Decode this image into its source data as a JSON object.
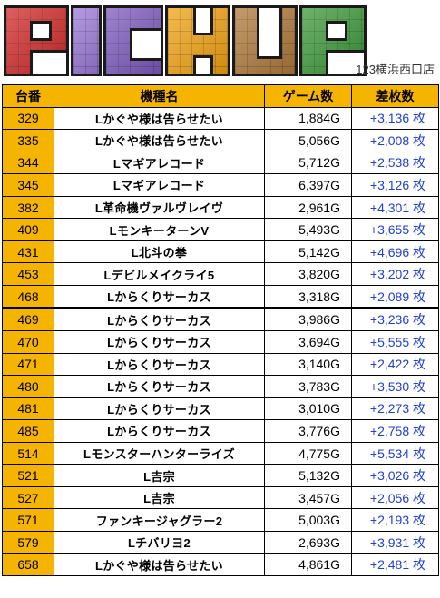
{
  "banner": {
    "logo_text": "PICKUP",
    "store_name": "123横浜西口店"
  },
  "colors": {
    "header_bg": "#f5b400",
    "number_bg": "#f5b400",
    "diff_text": "#1f3fd6"
  },
  "table": {
    "headers": [
      "台番",
      "機種名",
      "ゲーム数",
      "差枚数"
    ],
    "rows": [
      {
        "number": "329",
        "machine": "Lかぐや様は告らせたい",
        "games": "1,884G",
        "diff": "+3,136 枚"
      },
      {
        "number": "335",
        "machine": "Lかぐや様は告らせたい",
        "games": "5,056G",
        "diff": "+2,008 枚"
      },
      {
        "number": "344",
        "machine": "Lマギアレコード",
        "games": "5,712G",
        "diff": "+2,538 枚"
      },
      {
        "number": "345",
        "machine": "Lマギアレコード",
        "games": "6,397G",
        "diff": "+3,126 枚"
      },
      {
        "number": "382",
        "machine": "L革命機ヴァルヴレイヴ",
        "games": "2,961G",
        "diff": "+4,301 枚"
      },
      {
        "number": "409",
        "machine": "LモンキーターンV",
        "games": "5,493G",
        "diff": "+3,655 枚"
      },
      {
        "number": "431",
        "machine": "L北斗の拳",
        "games": "5,142G",
        "diff": "+4,696 枚"
      },
      {
        "number": "453",
        "machine": "Lデビルメイクライ5",
        "games": "3,820G",
        "diff": "+3,202 枚"
      },
      {
        "number": "468",
        "machine": "Lからくりサーカス",
        "games": "3,318G",
        "diff": "+2,089 枚"
      },
      {
        "number": "469",
        "machine": "Lからくりサーカス",
        "games": "3,986G",
        "diff": "+3,236 枚"
      },
      {
        "number": "470",
        "machine": "Lからくりサーカス",
        "games": "3,694G",
        "diff": "+5,555 枚"
      },
      {
        "number": "471",
        "machine": "Lからくりサーカス",
        "games": "3,140G",
        "diff": "+2,422 枚"
      },
      {
        "number": "480",
        "machine": "Lからくりサーカス",
        "games": "3,783G",
        "diff": "+3,530 枚"
      },
      {
        "number": "481",
        "machine": "Lからくりサーカス",
        "games": "3,010G",
        "diff": "+2,273 枚"
      },
      {
        "number": "485",
        "machine": "Lからくりサーカス",
        "games": "3,776G",
        "diff": "+2,758 枚"
      },
      {
        "number": "514",
        "machine": "Lモンスターハンターライズ",
        "games": "4,775G",
        "diff": "+5,534 枚"
      },
      {
        "number": "521",
        "machine": "L吉宗",
        "games": "5,132G",
        "diff": "+3,026 枚"
      },
      {
        "number": "527",
        "machine": "L吉宗",
        "games": "3,457G",
        "diff": "+2,056 枚"
      },
      {
        "number": "571",
        "machine": "ファンキージャグラー2",
        "games": "5,003G",
        "diff": "+2,193 枚"
      },
      {
        "number": "579",
        "machine": "Lチバリヨ2",
        "games": "2,693G",
        "diff": "+3,931 枚"
      },
      {
        "number": "658",
        "machine": "Lかぐや様は告らせたい",
        "games": "4,861G",
        "diff": "+2,481 枚"
      }
    ]
  }
}
